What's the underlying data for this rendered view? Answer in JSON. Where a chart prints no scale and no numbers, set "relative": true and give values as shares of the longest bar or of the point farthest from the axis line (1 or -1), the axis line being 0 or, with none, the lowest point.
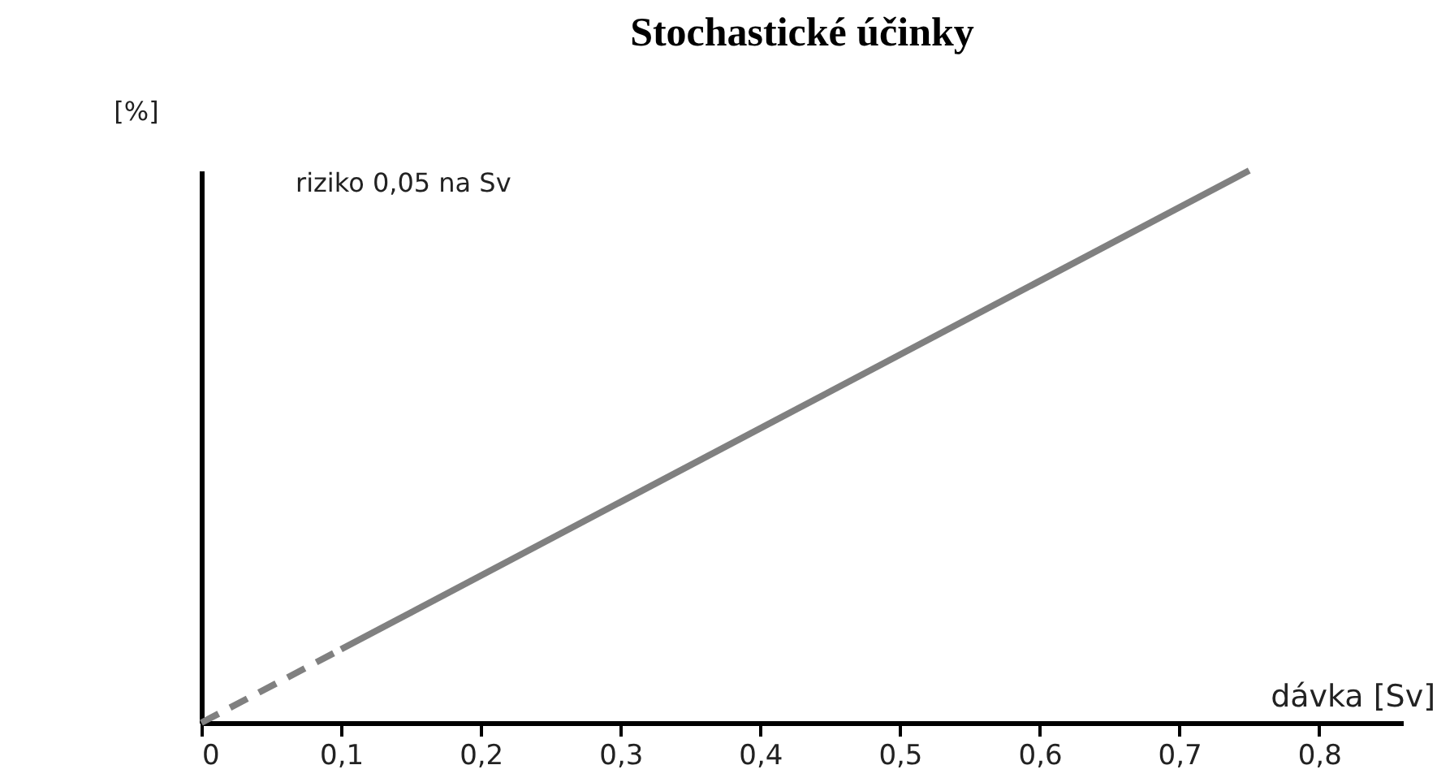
{
  "chart_data": {
    "type": "line",
    "title": "Stochastické účinky",
    "xlabel": "dávka [Sv]",
    "ylabel": "[%]",
    "relative": true,
    "annotations": [
      "riziko 0,05 na Sv"
    ],
    "xlim": [
      0,
      0.86
    ],
    "xticks": [
      {
        "value": 0,
        "label": "0"
      },
      {
        "value": 0.1,
        "label": "0,1"
      },
      {
        "value": 0.2,
        "label": "0,2"
      },
      {
        "value": 0.3,
        "label": "0,3"
      },
      {
        "value": 0.4,
        "label": "0,4"
      },
      {
        "value": 0.5,
        "label": "0,5"
      },
      {
        "value": 0.6,
        "label": "0,6"
      },
      {
        "value": 0.7,
        "label": "0,7"
      },
      {
        "value": 0.8,
        "label": "0,8"
      }
    ],
    "series": [
      {
        "color": "#808080",
        "line_style": "dashed",
        "x": [
          0,
          0.1
        ],
        "values": [
          0,
          0.133
        ]
      },
      {
        "color": "#808080",
        "line_style": "solid",
        "x": [
          0.1,
          0.75
        ],
        "values": [
          0.133,
          1
        ]
      }
    ],
    "grid": false
  }
}
